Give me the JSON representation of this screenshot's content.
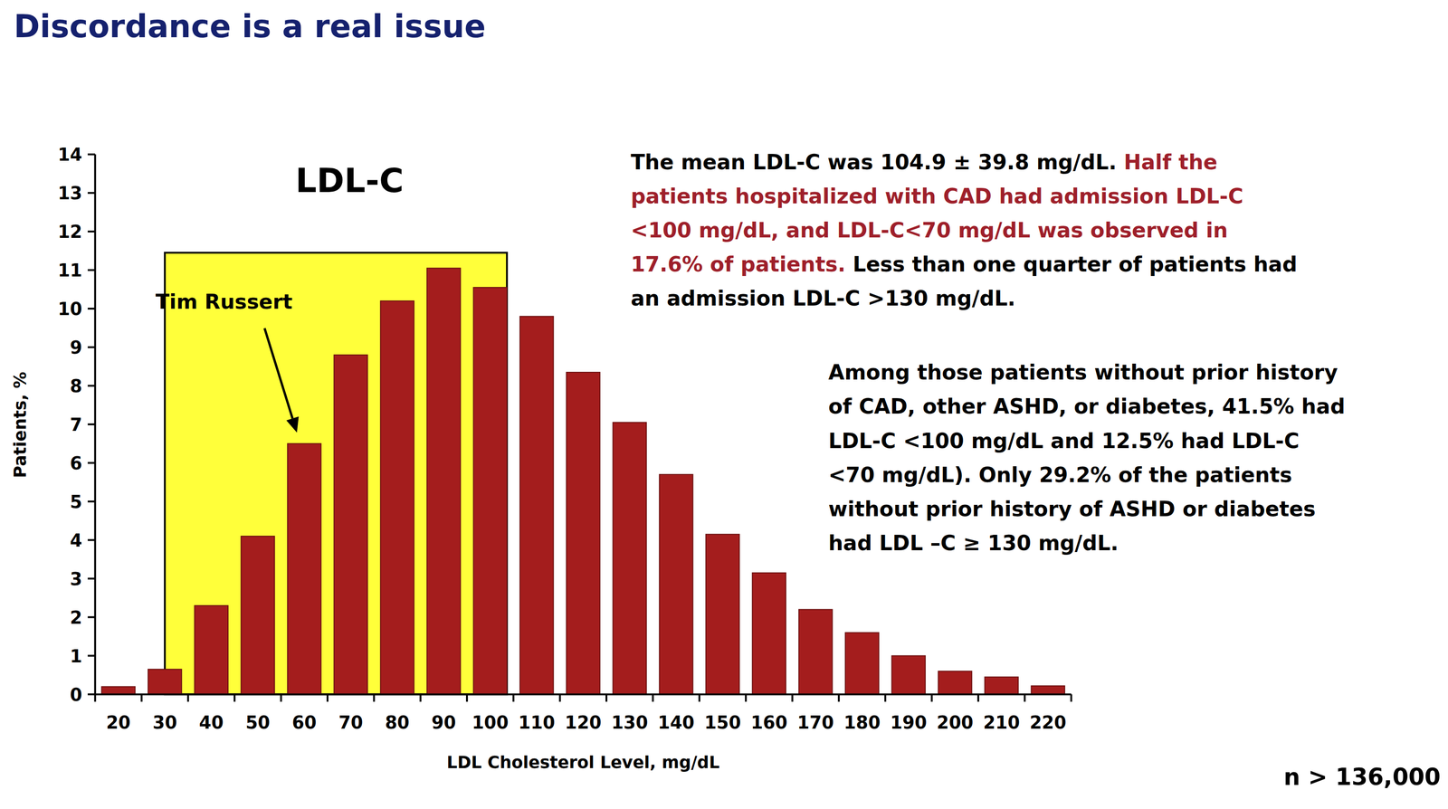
{
  "title": "Discordance is a real issue",
  "chart_data": {
    "type": "bar",
    "title": "LDL-C",
    "x_label": "LDL Cholesterol Level, mg/dL",
    "y_label": "Patients, %",
    "categories": [
      "20",
      "30",
      "40",
      "50",
      "60",
      "70",
      "80",
      "90",
      "100",
      "110",
      "120",
      "130",
      "140",
      "150",
      "160",
      "170",
      "180",
      "190",
      "200",
      "210",
      "220"
    ],
    "values": [
      0.2,
      0.65,
      2.3,
      4.1,
      6.5,
      8.8,
      10.2,
      11.05,
      10.55,
      9.8,
      8.35,
      7.05,
      5.7,
      4.15,
      3.15,
      2.2,
      1.6,
      1.0,
      0.6,
      0.45,
      0.22
    ],
    "color": "#a41d1d",
    "ylim": [
      0,
      14
    ],
    "yticks": [
      0,
      1,
      2,
      3,
      4,
      5,
      6,
      7,
      8,
      9,
      10,
      11,
      12,
      13,
      14
    ],
    "grid": false,
    "highlight": {
      "categories": [
        "30",
        "100"
      ],
      "y": 11.45,
      "color": "#ffff3a"
    },
    "annotations": [
      {
        "text": "Tim Russert",
        "category": "60"
      }
    ]
  },
  "notes": [
    {
      "lines": [
        [
          {
            "text": "The mean LDL-C was 104.9 ± 39.8 mg/dL. ",
            "color": "#000000"
          },
          {
            "text": "Half the",
            "color": "#9e1f2a"
          }
        ],
        [
          {
            "text": "patients hospitalized with CAD had admission LDL-C",
            "color": "#9e1f2a"
          }
        ],
        [
          {
            "text": "<100 mg/dL, and LDL-C<70 mg/dL was observed in",
            "color": "#9e1f2a"
          }
        ],
        [
          {
            "text": "17.6% of patients.",
            "color": "#9e1f2a"
          },
          {
            "text": " Less than one quarter of patients had",
            "color": "#000000"
          }
        ],
        [
          {
            "text": "an admission LDL-C >130 mg/dL.",
            "color": "#000000"
          }
        ]
      ]
    },
    {
      "lines": [
        [
          {
            "text": "Among those patients without prior history",
            "color": "#000000"
          }
        ],
        [
          {
            "text": "of CAD, other ASHD, or diabetes, 41.5% had",
            "color": "#000000"
          }
        ],
        [
          {
            "text": "LDL-C <100 mg/dL and 12.5% had LDL-C",
            "color": "#000000"
          }
        ],
        [
          {
            "text": "<70 mg/dL). Only 29.2% of the patients",
            "color": "#000000"
          }
        ],
        [
          {
            "text": "without prior history of ASHD or diabetes",
            "color": "#000000"
          }
        ],
        [
          {
            "text": "had LDL –C ≥ 130 mg/dL.",
            "color": "#000000"
          }
        ]
      ]
    }
  ],
  "sample_size": "n > 136,000"
}
